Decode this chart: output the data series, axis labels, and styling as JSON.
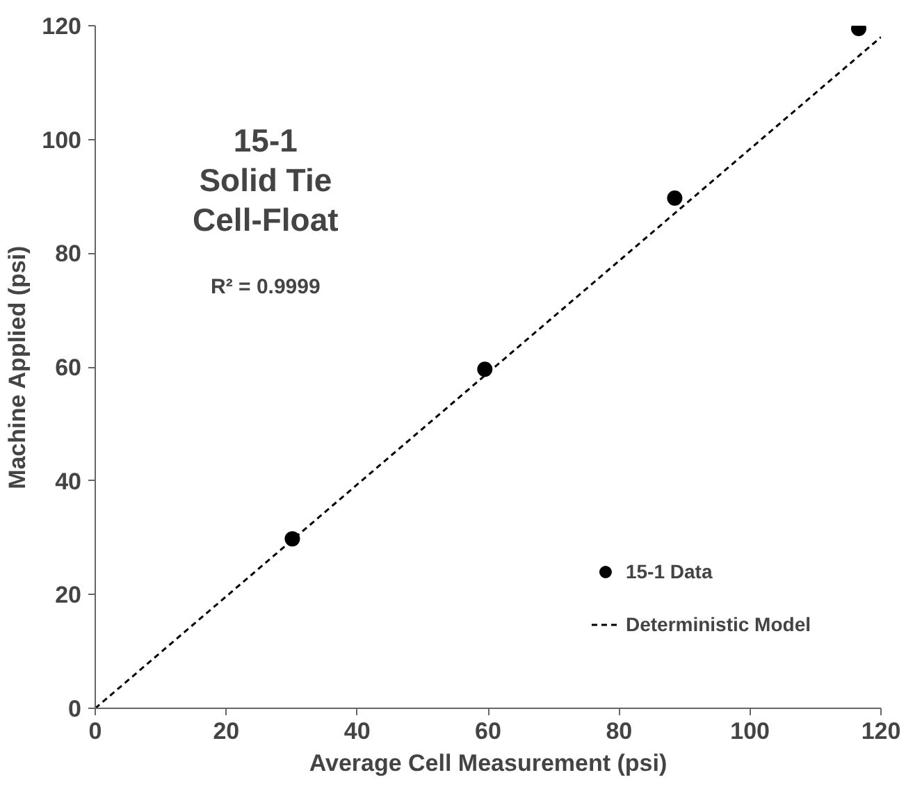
{
  "chart_data": {
    "type": "scatter",
    "title": "15-1\nSolid Tie\nCell-Float",
    "xlabel": "Average Cell Measurement (psi)",
    "ylabel": "Machine Applied (psi)",
    "annotations": [
      "R² = 0.9999"
    ],
    "xlim": [
      0,
      120
    ],
    "ylim": [
      0,
      120
    ],
    "xticks": [
      0,
      20,
      40,
      60,
      80,
      100,
      120
    ],
    "yticks": [
      0,
      20,
      40,
      60,
      80,
      100,
      120
    ],
    "grid": false,
    "legend": "bottom right",
    "series": [
      {
        "name": "15-1 Data",
        "color": "#000000",
        "marker": "circle",
        "x": [
          30.1,
          59.5,
          88.5,
          116.6
        ],
        "values": [
          29.8,
          59.6,
          89.7,
          119.5
        ]
      },
      {
        "name": "Deterministic Model",
        "type": "line",
        "color": "#000000",
        "line_style": "dashed",
        "x": [
          0,
          120
        ],
        "values": [
          0,
          118
        ]
      }
    ]
  }
}
